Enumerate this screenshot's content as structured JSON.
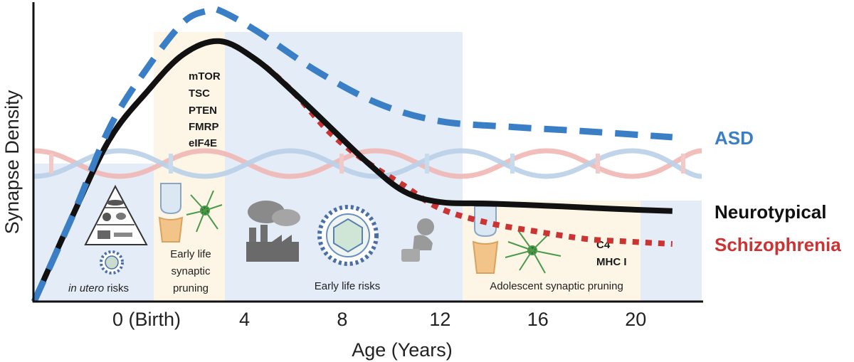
{
  "chart_data": {
    "type": "line",
    "xlabel": "Age (Years)",
    "ylabel": "Synapse Density",
    "x_ticks": [
      {
        "x": 0,
        "label": "0 (Birth)"
      },
      {
        "x": 4,
        "label": "4"
      },
      {
        "x": 8,
        "label": "8"
      },
      {
        "x": 12,
        "label": "12"
      },
      {
        "x": 16,
        "label": "16"
      },
      {
        "x": 20,
        "label": "20"
      }
    ],
    "xlim": [
      -4.6,
      22.7
    ],
    "ylim": [
      0,
      100
    ],
    "grid": false,
    "legend_placement": "right",
    "series": [
      {
        "name": "ASD",
        "color": "#3a7fc5",
        "style": "dashed",
        "x": [
          -4.6,
          -3.0,
          -1.5,
          0.0,
          1.5,
          2.5,
          3.0,
          4.5,
          7.0,
          9.5,
          12.0,
          15.0,
          18.0,
          21.5
        ],
        "y": [
          0,
          30,
          60,
          80,
          96,
          100,
          100,
          93,
          79,
          68,
          62,
          60,
          58.5,
          56.5
        ]
      },
      {
        "name": "Neurotypical",
        "color": "#111111",
        "style": "solid",
        "x": [
          -4.6,
          -3.0,
          -1.5,
          0.0,
          1.5,
          3.0,
          4.5,
          6.0,
          7.5,
          9.0,
          10.5,
          12.0,
          14.0,
          17.0,
          19.0,
          21.5
        ],
        "y": [
          0,
          30,
          56,
          72,
          85,
          89.5,
          83,
          72,
          60,
          48,
          38,
          34.2,
          33.7,
          32.7,
          31.9,
          31.1
        ]
      },
      {
        "name": "Schizophrenia",
        "color": "#cc3333",
        "style": "dotted",
        "x": [
          -4.6,
          -3.0,
          -1.5,
          0.0,
          1.5,
          3.0,
          4.5,
          6.0,
          7.5,
          9.0,
          10.5,
          12.0,
          14.0,
          16.0,
          18.0,
          19.5,
          21.5
        ],
        "y": [
          0,
          30,
          56,
          72,
          85,
          89.5,
          83,
          72,
          58,
          48,
          40,
          32,
          27,
          24,
          21.5,
          20.7,
          19.8
        ]
      }
    ],
    "annotations": {
      "genes_birth": [
        "mTOR",
        "TSC",
        "PTEN",
        "FMRP",
        "eIF4E"
      ],
      "genes_adolescent": [
        "C4",
        "MHC I"
      ],
      "in_utero_emph": "in utero",
      "in_utero_rest": " risks",
      "early_life_pruning": [
        "Early life",
        "synaptic",
        "pruning"
      ],
      "early_life_risks": "Early life risks",
      "adolescent_pruning": "Adolescent synaptic pruning"
    }
  }
}
